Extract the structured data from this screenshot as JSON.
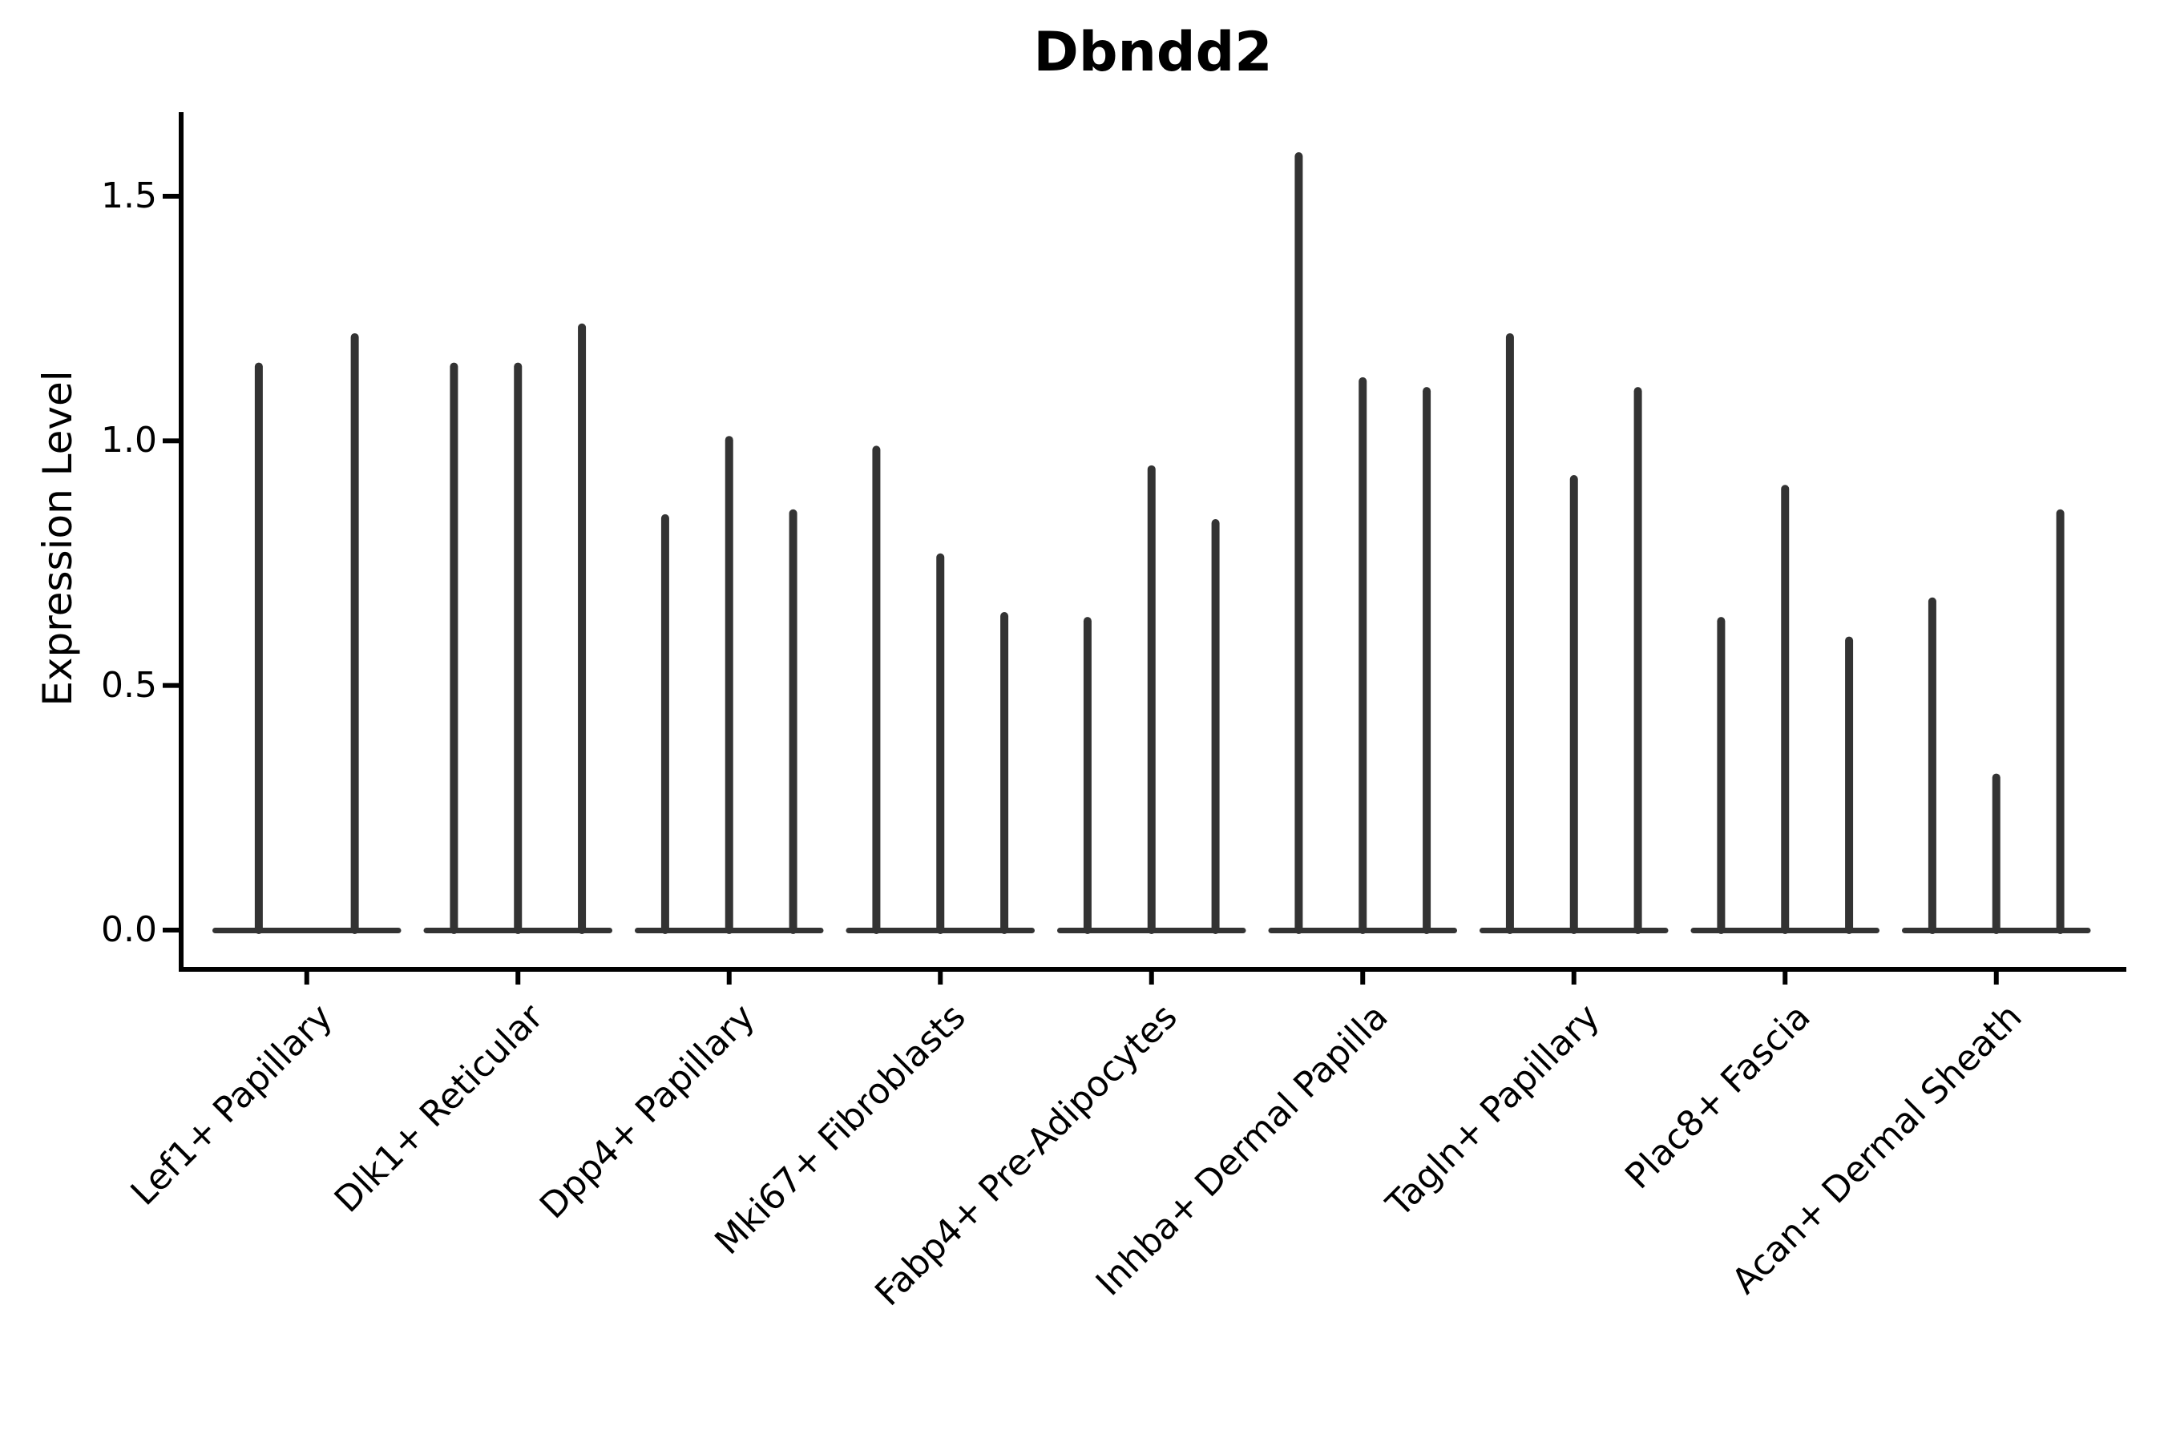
{
  "chart_data": {
    "type": "violin",
    "title": "Dbndd2",
    "ylabel": "Expression Level",
    "xlabel": "",
    "background_color": "#ffffff",
    "violin_color": "#333333",
    "axis_color": "#000000",
    "text_color": "#000000",
    "grid": false,
    "legend_position": "none",
    "x_tick_rotation_deg": 45,
    "y_ticks": [
      0.0,
      0.5,
      1.0,
      1.5
    ],
    "y_tick_labels": [
      "0.0",
      "0.5",
      "1.0",
      "1.5"
    ],
    "ylim": [
      -0.08,
      1.67
    ],
    "categories": [
      "Lef1+ Papillary",
      "Dlk1+ Reticular",
      "Dpp4+ Papillary",
      "Mki67+ Fibroblasts",
      "Fabp4+ Pre-Adipocytes",
      "Inhba+ Dermal Papilla",
      "Tagln+ Papillary",
      "Plac8+ Fascia",
      "Acan+ Dermal Sheath"
    ],
    "groups": [
      {
        "category": "Lef1+ Papillary",
        "violin_max_expression": [
          1.16,
          1.22
        ]
      },
      {
        "category": "Dlk1+ Reticular",
        "violin_max_expression": [
          1.16,
          1.16,
          1.24
        ]
      },
      {
        "category": "Dpp4+ Papillary",
        "violin_max_expression": [
          0.85,
          1.01,
          0.86
        ]
      },
      {
        "category": "Mki67+ Fibroblasts",
        "violin_max_expression": [
          0.99,
          0.77,
          0.65
        ]
      },
      {
        "category": "Fabp4+ Pre-Adipocytes",
        "violin_max_expression": [
          0.64,
          0.95,
          0.84
        ]
      },
      {
        "category": "Inhba+ Dermal Papilla",
        "violin_max_expression": [
          1.59,
          1.13,
          1.11
        ]
      },
      {
        "category": "Tagln+ Papillary",
        "violin_max_expression": [
          1.22,
          0.93,
          1.11
        ]
      },
      {
        "category": "Plac8+ Fascia",
        "violin_max_expression": [
          0.64,
          0.91,
          0.6
        ]
      },
      {
        "category": "Acan+ Dermal Sheath",
        "violin_max_expression": [
          0.68,
          0.32,
          0.86
        ]
      }
    ]
  }
}
